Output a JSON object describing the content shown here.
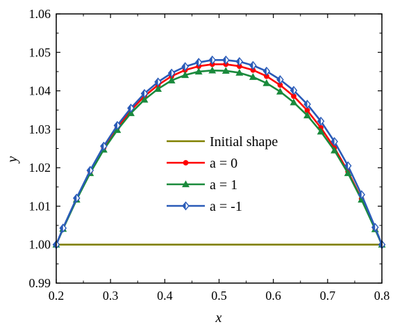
{
  "chart_data": {
    "type": "line",
    "xlabel": "x",
    "ylabel": "y",
    "xlim": [
      0.2,
      0.8
    ],
    "ylim": [
      0.99,
      1.06
    ],
    "x_ticks": [
      "0.2",
      "0.3",
      "0.4",
      "0.5",
      "0.6",
      "0.7",
      "0.8"
    ],
    "y_ticks": [
      "0.99",
      "1.00",
      "1.01",
      "1.02",
      "1.03",
      "1.04",
      "1.05",
      "1.06"
    ],
    "legend_position": "center",
    "grid": false,
    "series": [
      {
        "name": "Initial shape",
        "color": "#808000",
        "marker": "none",
        "x": [
          0.2,
          0.8
        ],
        "y": [
          1.0,
          1.0
        ]
      },
      {
        "name": "a = 0",
        "color": "#ff0000",
        "marker": "circle",
        "x": [
          0.2,
          0.2125,
          0.2375,
          0.2625,
          0.2875,
          0.3125,
          0.3375,
          0.3625,
          0.3875,
          0.4125,
          0.4375,
          0.4625,
          0.4875,
          0.5125,
          0.5375,
          0.5625,
          0.5875,
          0.6125,
          0.6375,
          0.6625,
          0.6875,
          0.7125,
          0.7375,
          0.7625,
          0.7875,
          0.8
        ],
        "y": [
          1.0,
          1.0042,
          1.0119,
          1.019,
          1.0252,
          1.0304,
          1.0349,
          1.0386,
          1.0415,
          1.0438,
          1.0454,
          1.0464,
          1.0469,
          1.0469,
          1.0464,
          1.0454,
          1.0438,
          1.0415,
          1.0386,
          1.0349,
          1.0304,
          1.0252,
          1.019,
          1.0119,
          1.0042,
          1.0
        ]
      },
      {
        "name": "a = 1",
        "color": "#1a8a3c",
        "marker": "triangle",
        "x": [
          0.2,
          0.2125,
          0.2375,
          0.2625,
          0.2875,
          0.3125,
          0.3375,
          0.3625,
          0.3875,
          0.4125,
          0.4375,
          0.4625,
          0.4875,
          0.5125,
          0.5375,
          0.5625,
          0.5875,
          0.6125,
          0.6375,
          0.6625,
          0.6875,
          0.7125,
          0.7375,
          0.7625,
          0.7875,
          0.8
        ],
        "y": [
          1.0,
          1.0041,
          1.0117,
          1.0186,
          1.0247,
          1.0298,
          1.0342,
          1.0377,
          1.0405,
          1.0427,
          1.0441,
          1.045,
          1.0453,
          1.0452,
          1.0447,
          1.0436,
          1.042,
          1.0398,
          1.037,
          1.0336,
          1.0294,
          1.0245,
          1.0186,
          1.0117,
          1.004,
          1.0
        ]
      },
      {
        "name": "a = -1",
        "color": "#2a5bb8",
        "marker": "diamond",
        "x": [
          0.2,
          0.2125,
          0.2375,
          0.2625,
          0.2875,
          0.3125,
          0.3375,
          0.3625,
          0.3875,
          0.4125,
          0.4375,
          0.4625,
          0.4875,
          0.5125,
          0.5375,
          0.5625,
          0.5875,
          0.6125,
          0.6375,
          0.6625,
          0.6875,
          0.7125,
          0.7375,
          0.7625,
          0.7875,
          0.8
        ],
        "y": [
          1.0,
          1.0043,
          1.0121,
          1.0193,
          1.0256,
          1.031,
          1.0355,
          1.0393,
          1.0423,
          1.0446,
          1.0463,
          1.0474,
          1.048,
          1.048,
          1.0476,
          1.0466,
          1.0451,
          1.0429,
          1.0401,
          1.0365,
          1.0321,
          1.0268,
          1.0205,
          1.013,
          1.0045,
          1.0
        ]
      }
    ]
  }
}
